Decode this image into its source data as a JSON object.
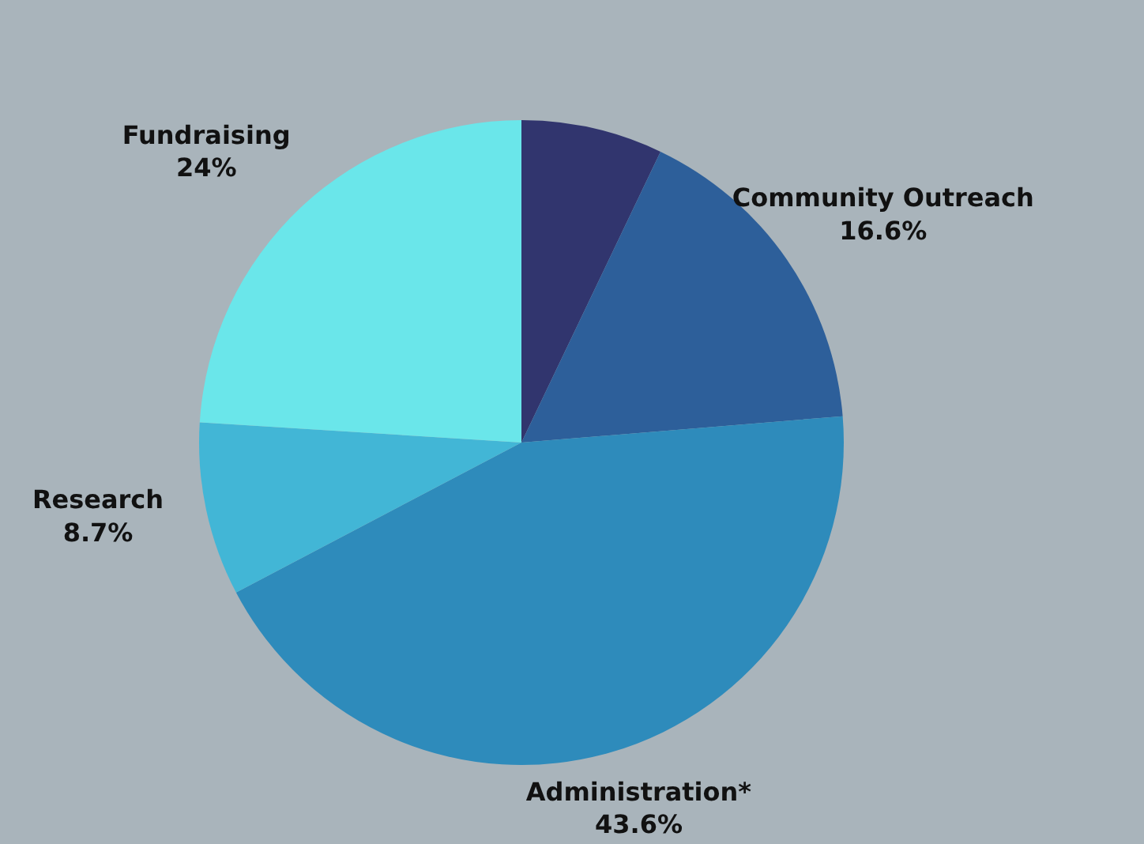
{
  "chart_data": {
    "type": "pie",
    "categories": [
      null,
      "Community Outreach",
      "Administration*",
      "Research",
      "Fundraising"
    ],
    "values": [
      7.1,
      16.6,
      43.6,
      8.7,
      24
    ],
    "value_labels": [
      null,
      "16.6%",
      "43.6%",
      "8.7%",
      "24%"
    ],
    "colors": [
      "#31356e",
      "#2d5f9a",
      "#2e8bbb",
      "#42b6d6",
      "#6ae6ea"
    ],
    "legend": false
  }
}
